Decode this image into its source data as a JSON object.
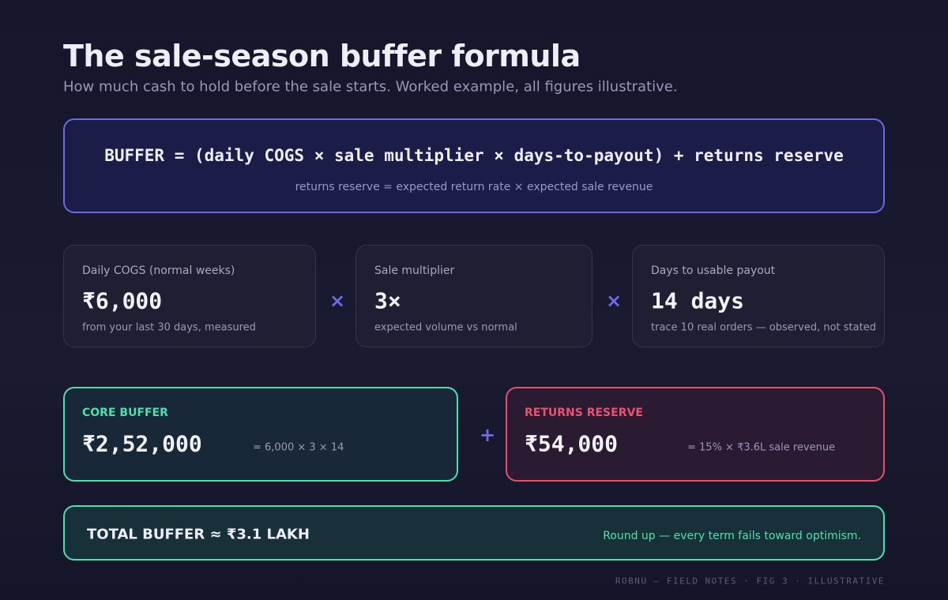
{
  "header": {
    "title": "The sale-season buffer formula",
    "subtitle": "How much cash to hold before the sale starts. Worked example, all figures illustrative."
  },
  "formula": {
    "main": "BUFFER = (daily COGS × sale multiplier × days-to-payout) + returns reserve",
    "note": "returns reserve = expected return rate × expected sale revenue"
  },
  "inputs": [
    {
      "label": "Daily COGS (normal weeks)",
      "value": "₹6,000",
      "note": "from your last 30 days, measured"
    },
    {
      "label": "Sale multiplier",
      "value": "3×",
      "note": "expected volume vs normal"
    },
    {
      "label": "Days to usable payout",
      "value": "14 days",
      "note": "trace 10 real orders — observed, not stated"
    }
  ],
  "operators": {
    "times": [
      "×",
      "×"
    ],
    "plus": "+"
  },
  "terms": [
    {
      "label": "CORE BUFFER",
      "value": "₹2,52,000",
      "calc": "= 6,000 × 3 × 14"
    },
    {
      "label": "RETURNS RESERVE",
      "value": "₹54,000",
      "calc": "= 15% × ₹3.6L sale revenue"
    }
  ],
  "total": {
    "label": "TOTAL BUFFER ≈ ₹3.1 LAKH",
    "note": "Round up — every term fails toward optimism."
  },
  "footer": "ROBNU — FIELD NOTES · FIG 3 · ILLUSTRATIVE"
}
